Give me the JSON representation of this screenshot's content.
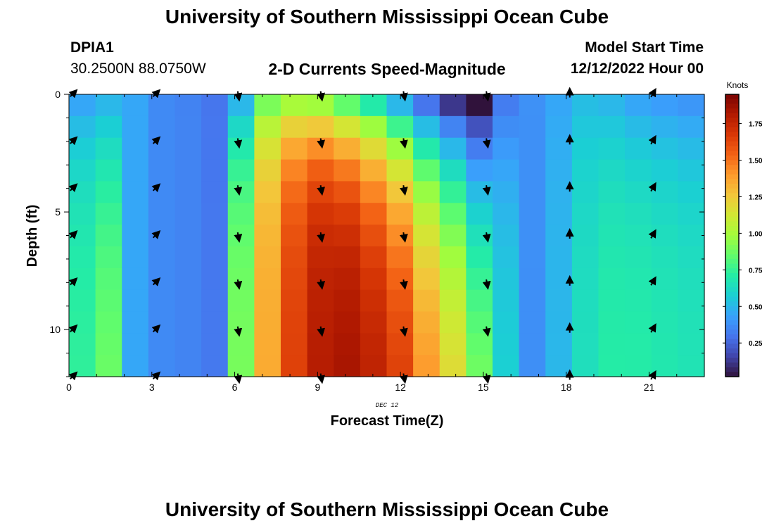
{
  "page": {
    "title": "University of Southern Mississippi Ocean Cube",
    "title_bottom": "University of Southern Mississippi Ocean Cube",
    "station": "DPIA1",
    "location": "30.2500N  88.0750W",
    "subtitle": "2-D Currents Speed-Magnitude",
    "start_label": "Model Start Time",
    "start_value": "12/12/2022 Hour 00"
  },
  "chart_data": {
    "type": "heatmap",
    "title": "2-D Currents Speed-Magnitude",
    "xlabel": "Forecast Time(Z)",
    "ylabel": "Depth (ft)",
    "date_label": "DEC 12",
    "x_ticks": [
      0,
      3,
      6,
      9,
      12,
      15,
      18,
      21
    ],
    "y_ticks": [
      0,
      5,
      10
    ],
    "xlim": [
      0,
      23
    ],
    "ylim": [
      0,
      12
    ],
    "colorbar": {
      "label": "Knots",
      "ticks": [
        0.25,
        0.5,
        0.75,
        1.0,
        1.25,
        1.5,
        1.75
      ],
      "tick_labels": [
        "0.25",
        "0.50",
        "0.75",
        "1.00",
        "1.25",
        "1.50",
        "1.75"
      ],
      "range": [
        0.02,
        1.95
      ],
      "stops": [
        "#30123b",
        "#4145ab",
        "#4675ed",
        "#39a2fc",
        "#1bcfd4",
        "#24eca6",
        "#61fc6c",
        "#a4fc3b",
        "#d1e834",
        "#f3c63a",
        "#fe9b2d",
        "#f36315",
        "#d93806",
        "#b11901",
        "#7a0402"
      ]
    },
    "hours": [
      0,
      1,
      2,
      3,
      4,
      5,
      6,
      7,
      8,
      9,
      10,
      11,
      12,
      13,
      14,
      15,
      16,
      17,
      18,
      19,
      20,
      21,
      22,
      23
    ],
    "depth_levels": [
      0,
      1,
      2,
      3,
      4,
      5,
      6,
      7,
      8,
      9,
      10,
      11,
      12
    ],
    "profiles": {
      "hours": [
        0,
        1,
        2,
        3,
        4,
        5,
        6,
        7,
        8,
        9,
        10,
        11,
        12,
        13,
        14,
        15,
        16,
        17,
        18,
        19,
        20,
        21,
        22,
        23
      ],
      "top_speed": [
        0.45,
        0.5,
        0.45,
        0.36,
        0.34,
        0.3,
        0.5,
        0.9,
        1.0,
        0.98,
        0.85,
        0.7,
        0.5,
        0.3,
        0.15,
        0.05,
        0.32,
        0.38,
        0.45,
        0.52,
        0.5,
        0.45,
        0.42,
        0.4
      ],
      "bottom_speed": [
        0.75,
        0.9,
        0.45,
        0.37,
        0.36,
        0.38,
        0.9,
        1.35,
        1.65,
        1.8,
        1.85,
        1.8,
        1.7,
        1.5,
        1.3,
        1.0,
        0.6,
        0.34,
        0.5,
        0.65,
        0.72,
        0.72,
        0.7,
        0.68
      ],
      "decay_ft": [
        4.0,
        5.0,
        99,
        99,
        99,
        99,
        3.0,
        2.5,
        2.5,
        2.5,
        3.0,
        3.5,
        4.0,
        5.0,
        5.5,
        6.0,
        5.0,
        99,
        4.0,
        4.0,
        4.0,
        4.0,
        4.0,
        4.0
      ]
    },
    "vectors": {
      "hours": [
        0,
        3,
        6,
        9,
        12,
        15,
        18,
        21
      ],
      "depths": [
        0,
        2,
        4,
        6,
        8,
        10,
        12
      ],
      "direction_deg": [
        45,
        45,
        170,
        170,
        170,
        170,
        0,
        30
      ]
    }
  }
}
